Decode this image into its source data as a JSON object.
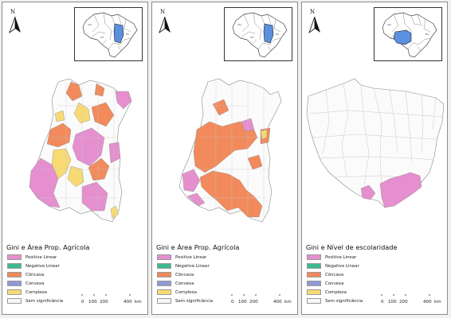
{
  "map_panels": [
    {
      "title": "Gini e Área Prop. Agrícola",
      "north_label": "N",
      "inset_highlight_color": "#5b8fe0",
      "legend": [
        {
          "label": "Positive Linear",
          "color": "#e58fcf"
        },
        {
          "label": "Negative Linear",
          "color": "#3dbb91"
        },
        {
          "label": "Côncava",
          "color": "#f28a5c"
        },
        {
          "label": "Convexa",
          "color": "#8f9ad6"
        },
        {
          "label": "Complexa",
          "color": "#f7da73"
        },
        {
          "label": "Sem significância",
          "color": "#f7f7f7"
        }
      ],
      "scale": {
        "ticks": [
          "0",
          "100",
          "200",
          "400"
        ],
        "unit": "km"
      }
    },
    {
      "title": "Gini e Área Prop. Agrícola",
      "north_label": "N",
      "inset_highlight_color": "#5b8fe0",
      "legend": [
        {
          "label": "Positive Linear",
          "color": "#e58fcf"
        },
        {
          "label": "Negative Linear",
          "color": "#3dbb91"
        },
        {
          "label": "Côncava",
          "color": "#f28a5c"
        },
        {
          "label": "Convexa",
          "color": "#8f9ad6"
        },
        {
          "label": "Complexa",
          "color": "#f7da73"
        },
        {
          "label": "Sem significância",
          "color": "#f7f7f7"
        }
      ],
      "scale": {
        "ticks": [
          "0",
          "100",
          "200",
          "400"
        ],
        "unit": "km"
      }
    },
    {
      "title": "Gini e Nível de escolaridade",
      "north_label": "N",
      "inset_highlight_color": "#5b8fe0",
      "legend": [
        {
          "label": "Positive Linear",
          "color": "#e58fcf"
        },
        {
          "label": "Negative Linear",
          "color": "#3dbb91"
        },
        {
          "label": "Côncava",
          "color": "#f28a5c"
        },
        {
          "label": "Convexa",
          "color": "#8f9ad6"
        },
        {
          "label": "Complexa",
          "color": "#f7da73"
        },
        {
          "label": "Sem significância",
          "color": "#f7f7f7"
        }
      ],
      "scale": {
        "ticks": [
          "0",
          "100",
          "200",
          "400"
        ],
        "unit": "km"
      }
    }
  ]
}
